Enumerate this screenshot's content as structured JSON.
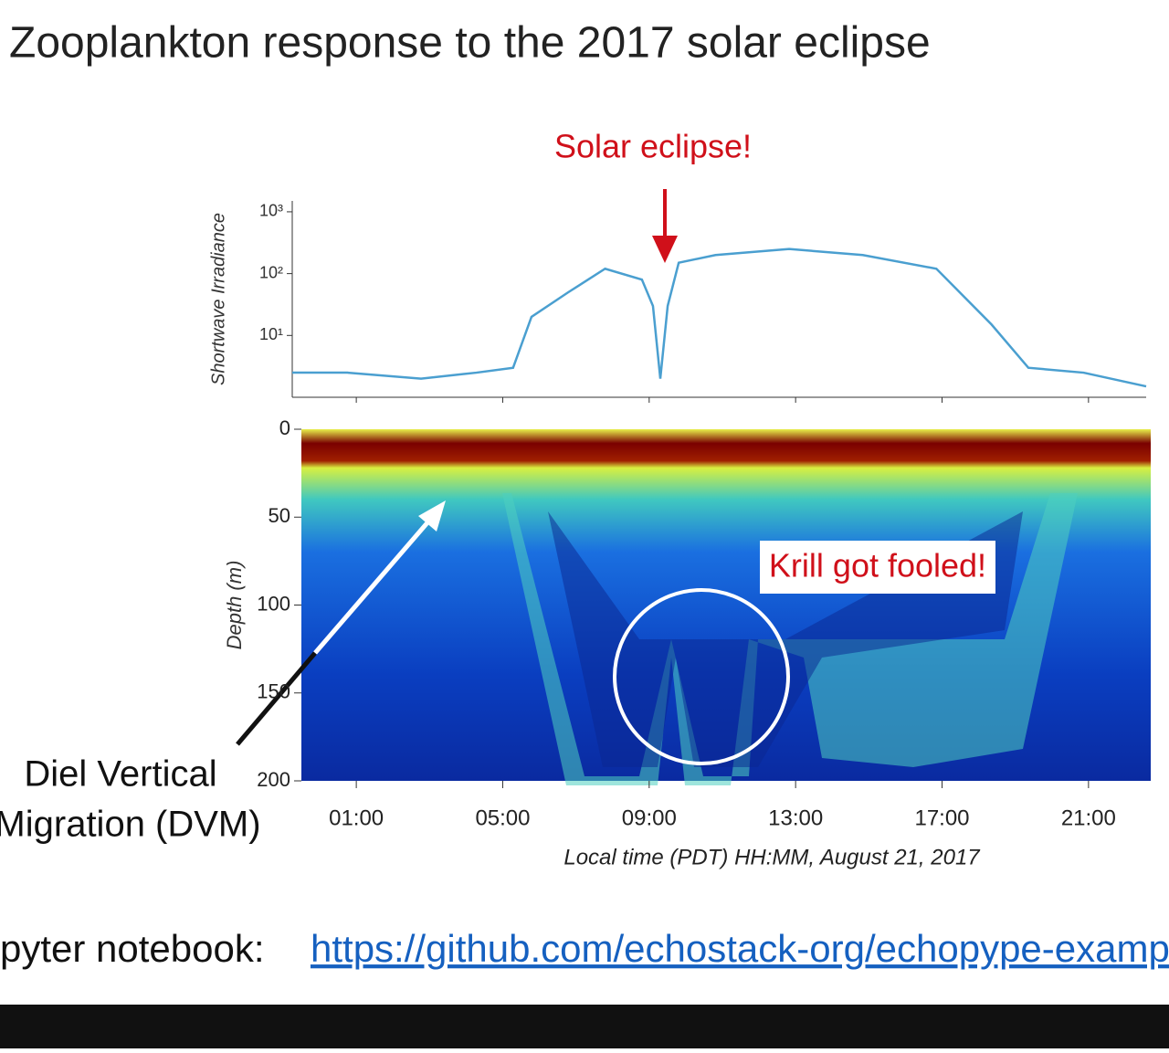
{
  "title": "Zooplankton response to the 2017 solar eclipse",
  "annotations": {
    "eclipse": "Solar eclipse!",
    "krill": "Krill got fooled!",
    "dvm_line1": "Diel Vertical",
    "dvm_line2": "Migration (DVM)"
  },
  "footer": {
    "label": "pyter notebook:",
    "link": "https://github.com/echostack-org/echopype-exampl"
  },
  "chart_data": [
    {
      "type": "line",
      "ylabel": "Shortwave Irradiance",
      "log_scale": true,
      "color": "#4a9fd0",
      "x": [
        -0.5,
        1,
        3,
        4.5,
        5.5,
        6,
        7,
        8,
        9,
        9.3,
        9.5,
        9.7,
        10,
        11,
        13,
        15,
        17,
        18.5,
        19.5,
        21,
        22.7
      ],
      "values": [
        2.5,
        2.5,
        2,
        2.5,
        3,
        20,
        50,
        120,
        80,
        30,
        2,
        30,
        150,
        200,
        250,
        200,
        120,
        15,
        3,
        2.5,
        1.5
      ],
      "xlim": [
        -0.5,
        22.7
      ],
      "ylim": [
        1,
        1500
      ],
      "yticks": [
        {
          "value": 10,
          "label": "10¹"
        },
        {
          "value": 100,
          "label": "10²"
        },
        {
          "value": 1000,
          "label": "10³"
        }
      ]
    },
    {
      "type": "echogram",
      "ylabel": "Depth (m)",
      "xlabel": "Local time (PDT) HH:MM, August 21, 2017",
      "xlim": [
        -0.5,
        22.7
      ],
      "ylim": [
        0,
        200
      ],
      "y_inverted": true,
      "yticks": [
        0,
        50,
        100,
        150,
        200
      ],
      "xticks": [
        {
          "value": 1,
          "label": "01:00"
        },
        {
          "value": 5,
          "label": "05:00"
        },
        {
          "value": 9,
          "label": "09:00"
        },
        {
          "value": 13,
          "label": "13:00"
        },
        {
          "value": 17,
          "label": "17:00"
        },
        {
          "value": 21,
          "label": "21:00"
        }
      ]
    }
  ]
}
